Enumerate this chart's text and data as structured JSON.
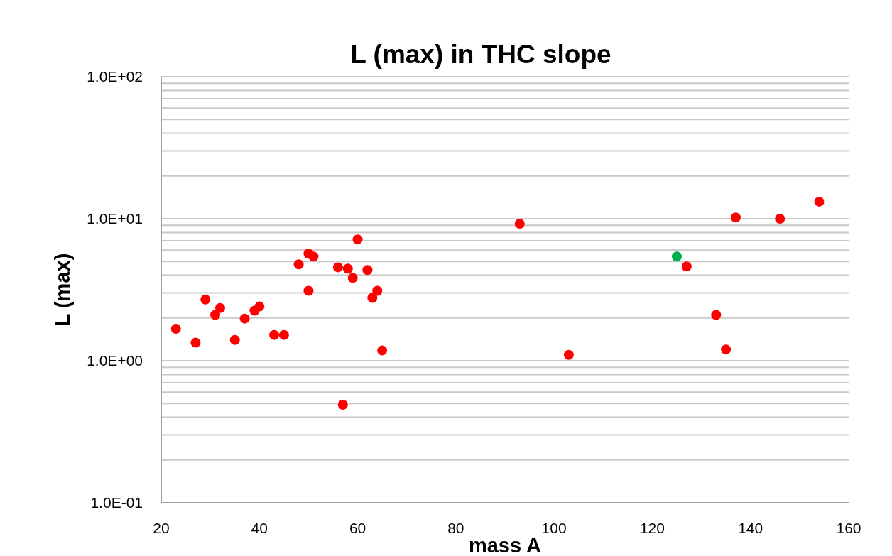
{
  "chart_data": {
    "type": "scatter",
    "title": "L (max) in THC slope",
    "xlabel": "mass A",
    "ylabel": "L (max)",
    "log": "y",
    "grid": "y",
    "marker": "circle",
    "xlim": [
      20,
      160
    ],
    "xticks": [
      20,
      40,
      60,
      80,
      100,
      120,
      140,
      160
    ],
    "ylim": [
      0.1,
      100
    ],
    "yticks": [
      {
        "value": 0.1,
        "label": "1.0E-01"
      },
      {
        "value": 1,
        "label": "1.0E+00"
      },
      {
        "value": 10,
        "label": "1.0E+01"
      },
      {
        "value": 100,
        "label": "1.0E+02"
      }
    ],
    "series": [
      {
        "color": "#ff0000",
        "x": [
          23,
          27,
          29,
          31,
          32,
          35,
          37,
          39,
          40,
          43,
          45,
          48,
          50,
          50,
          51,
          56,
          57,
          58,
          59,
          60,
          62,
          63,
          64,
          65,
          93,
          103,
          127,
          133,
          135,
          137,
          146,
          154
        ],
        "values": [
          1.68,
          1.34,
          2.7,
          2.1,
          2.35,
          1.4,
          1.98,
          2.25,
          2.41,
          1.52,
          1.52,
          4.77,
          5.67,
          3.11,
          5.42,
          4.55,
          0.49,
          4.45,
          3.83,
          7.15,
          4.35,
          2.77,
          3.11,
          1.18,
          9.22,
          1.1,
          4.61,
          2.1,
          1.2,
          10.2,
          10.0,
          13.2
        ]
      },
      {
        "color": "#00b050",
        "x": [
          125
        ],
        "values": [
          5.42
        ]
      }
    ]
  }
}
